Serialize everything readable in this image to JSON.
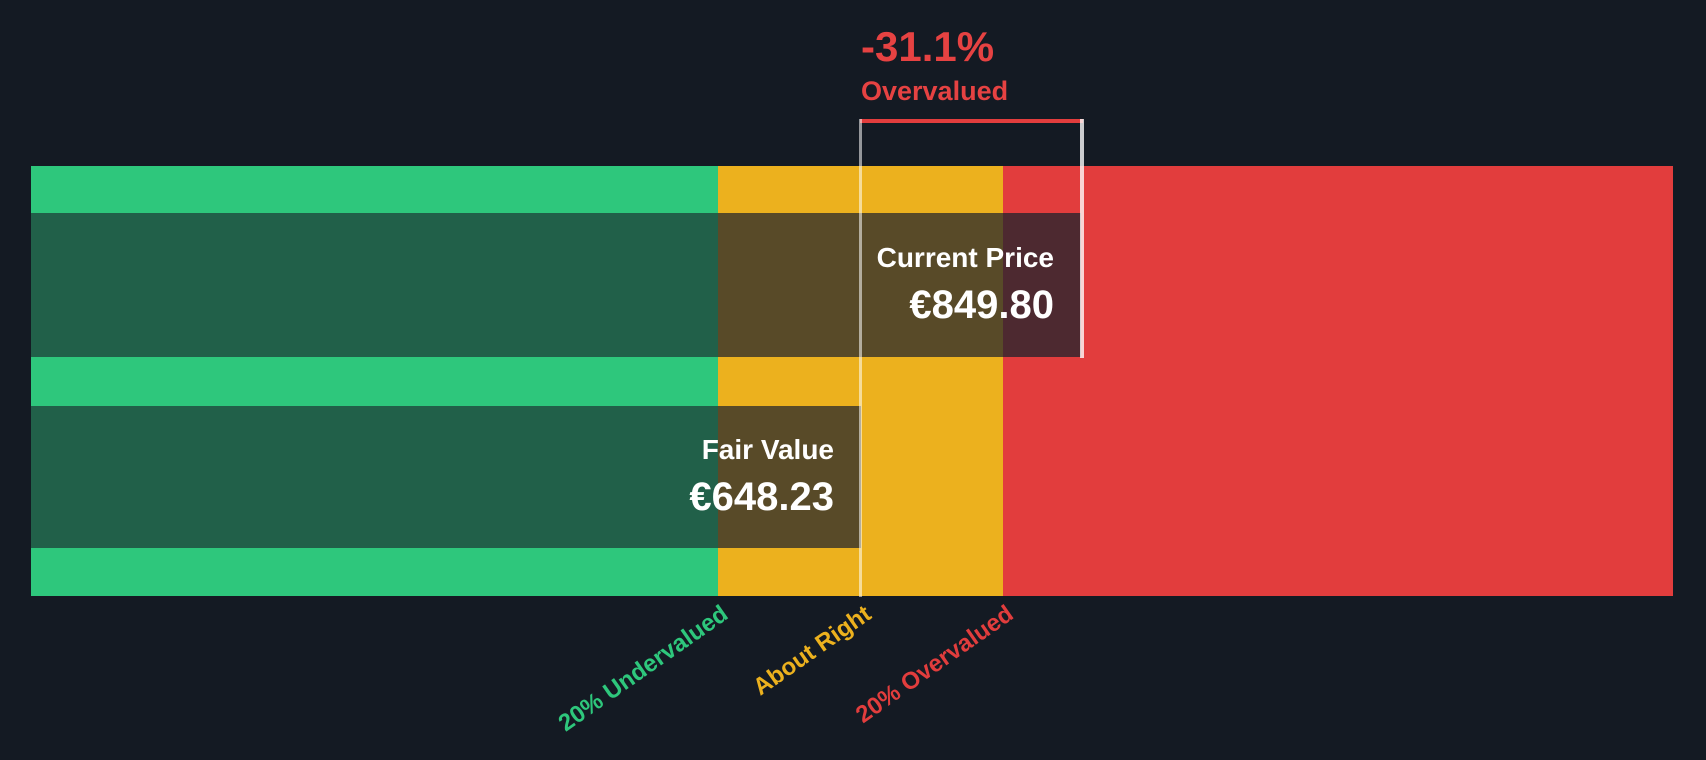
{
  "chart_data": {
    "type": "bar",
    "orientation": "horizontal",
    "currency_symbol": "€",
    "series": [
      {
        "name": "Current Price",
        "value": 849.8,
        "label": "€849.80"
      },
      {
        "name": "Fair Value",
        "value": 648.23,
        "label": "€648.23"
      }
    ],
    "zones": [
      {
        "label": "20% Undervalued",
        "color": "#2ec77c"
      },
      {
        "label": "About Right",
        "color": "#ecb11e"
      },
      {
        "label": "20% Overvalued",
        "color": "#e23d3d"
      }
    ],
    "annotation": {
      "value": "-31.1%",
      "label": "Overvalued",
      "color": "#e64242"
    },
    "layout_hints": {
      "background": "#141a23",
      "bar_text_color": "#ffffff",
      "zone_thresholds_relative_to_fair_value": [
        0.8,
        1.2
      ],
      "legend": "none",
      "grid": "off",
      "axis_label_rotation_deg": -35
    }
  }
}
